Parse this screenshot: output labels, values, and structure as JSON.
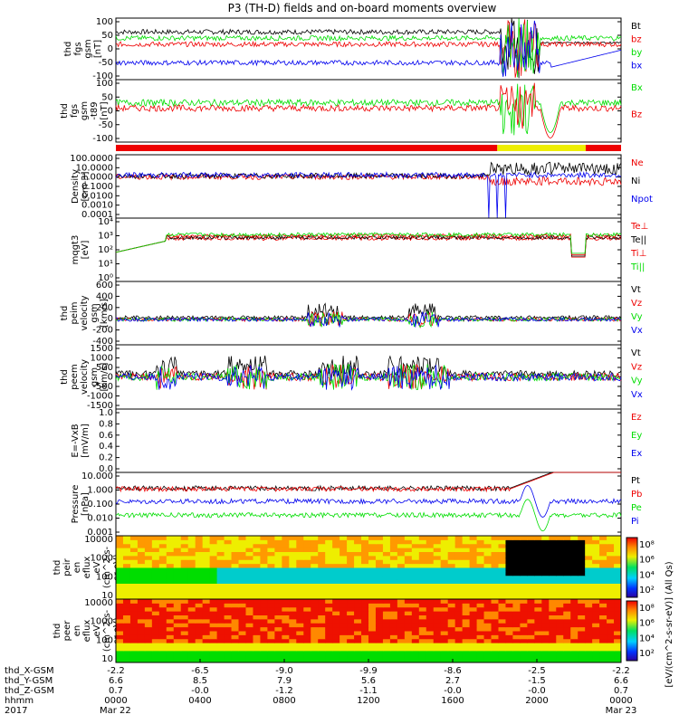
{
  "title": "P3 (TH-D) fields and on-board moments overview",
  "xaxis": {
    "ticks": [
      "0000",
      "0400",
      "0800",
      "1200",
      "1600",
      "2000",
      "0000"
    ],
    "row_labels": [
      "thd_X-GSM",
      "thd_Y-GSM",
      "thd_Z-GSM",
      "hhmm",
      "2017"
    ],
    "x_gsm": [
      "-2.2",
      "-6.5",
      "-9.0",
      "-9.9",
      "-8.6",
      "-2.5",
      "-2.2"
    ],
    "y_gsm": [
      "6.6",
      "8.5",
      "7.9",
      "5.6",
      "2.7",
      "-1.5",
      "6.6"
    ],
    "z_gsm": [
      "0.7",
      "-0.0",
      "-1.2",
      "-1.1",
      "-0.0",
      "-0.0",
      "0.7"
    ],
    "date_start": "Mar 22",
    "date_end": "Mar 23"
  },
  "colors": {
    "black": "#000000",
    "red": "#ee0000",
    "green": "#00dd00",
    "blue": "#0000ee",
    "yellow": "#eeee00"
  },
  "status_bar": {
    "segments": [
      [
        "red",
        0.0,
        0.755
      ],
      [
        "yellow",
        0.755,
        0.93
      ],
      [
        "red",
        0.93,
        1.0
      ]
    ]
  },
  "chart_data": [
    {
      "id": "fgs_gsm",
      "type": "line",
      "ylabel": [
        "thd",
        "fgs",
        "gsm",
        "[nT]"
      ],
      "ylim": [
        -100,
        100
      ],
      "yticks": [
        "100",
        "50",
        "0",
        "-50",
        "-100"
      ],
      "series": [
        {
          "name": "Bt",
          "color": "black"
        },
        {
          "name": "bz",
          "color": "red"
        },
        {
          "name": "by",
          "color": "green"
        },
        {
          "name": "bx",
          "color": "blue"
        }
      ]
    },
    {
      "id": "fgs_gsm_model",
      "type": "line",
      "ylabel": [
        "thd",
        "fgs",
        "gsm",
        "-t89",
        "[nT]"
      ],
      "ylim": [
        -130,
        100
      ],
      "yticks": [
        "100",
        "50",
        "0",
        "-50",
        "-100"
      ],
      "series": [
        {
          "name": "Bx",
          "color": "green"
        },
        {
          "name": "Bz",
          "color": "red"
        }
      ]
    },
    {
      "id": "density",
      "type": "line",
      "log": true,
      "ylabel": [
        "Density",
        "[cm-3]"
      ],
      "ylim": [
        0.0001,
        100
      ],
      "yticks": [
        "100.0000",
        "10.0000",
        "1.0000",
        "0.1000",
        "0.0100",
        "0.0010",
        "0.0001"
      ],
      "series": [
        {
          "name": "Ne",
          "color": "red"
        },
        {
          "name": "Ni",
          "color": "black"
        },
        {
          "name": "Npot",
          "color": "blue"
        }
      ]
    },
    {
      "id": "temperature",
      "type": "line",
      "log": true,
      "ylabel": [
        "mqgt3",
        "[eV]"
      ],
      "ylim": [
        1,
        100000
      ],
      "yticks": [
        "10⁴",
        "10³",
        "10²",
        "10¹",
        "10⁰"
      ],
      "series": [
        {
          "name": "Te⊥",
          "color": "red"
        },
        {
          "name": "Te||",
          "color": "black"
        },
        {
          "name": "Ti⊥",
          "color": "red"
        },
        {
          "name": "Ti||",
          "color": "green"
        }
      ]
    },
    {
      "id": "peim_velocity",
      "type": "line",
      "ylabel": [
        "thd",
        "peim",
        "velocity",
        "gsm",
        "[km/s]"
      ],
      "ylim": [
        -400,
        600
      ],
      "yticks": [
        "600",
        "400",
        "200",
        "0",
        "-200",
        "-400"
      ],
      "series": [
        {
          "name": "Vt",
          "color": "black"
        },
        {
          "name": "Vz",
          "color": "red"
        },
        {
          "name": "Vy",
          "color": "green"
        },
        {
          "name": "Vx",
          "color": "blue"
        }
      ]
    },
    {
      "id": "peem_velocity",
      "type": "line",
      "ylabel": [
        "thd",
        "peem",
        "velocity",
        "gsm",
        "[km/s]"
      ],
      "ylim": [
        -1500,
        1500
      ],
      "yticks": [
        "1500",
        "1000",
        "500",
        "0",
        "-500",
        "-1000",
        "-1500"
      ],
      "series": [
        {
          "name": "Vt",
          "color": "black"
        },
        {
          "name": "Vz",
          "color": "red"
        },
        {
          "name": "Vy",
          "color": "green"
        },
        {
          "name": "Vx",
          "color": "blue"
        }
      ]
    },
    {
      "id": "efield",
      "type": "line",
      "ylabel": [
        "E=-VxB",
        "[mV/m]"
      ],
      "ylim": [
        0,
        1
      ],
      "yticks": [
        "1.0",
        "0.8",
        "0.6",
        "0.4",
        "0.2",
        "0.0"
      ],
      "series": [
        {
          "name": "Ez",
          "color": "red"
        },
        {
          "name": "Ey",
          "color": "green"
        },
        {
          "name": "Ex",
          "color": "blue"
        }
      ]
    },
    {
      "id": "pressure",
      "type": "line",
      "log": true,
      "ylabel": [
        "Pressure",
        "[nPa]"
      ],
      "ylim": [
        0.001,
        10
      ],
      "yticks": [
        "10.000",
        "1.000",
        "0.100",
        "0.010",
        "0.001"
      ],
      "series": [
        {
          "name": "Pt",
          "color": "black"
        },
        {
          "name": "Pb",
          "color": "red"
        },
        {
          "name": "Pe",
          "color": "green"
        },
        {
          "name": "Pi",
          "color": "blue"
        }
      ]
    },
    {
      "id": "peir_spectrogram",
      "type": "heatmap",
      "ylabel": [
        "thd",
        "peir",
        "en",
        "eflux",
        "eV",
        "(cm^2-s-",
        "sr-eV)"
      ],
      "yticks": [
        "10000",
        "1000",
        "100",
        "10"
      ],
      "colorbar": {
        "label": "[eV/(cm^2-s-sr-eV)] (All Qs)",
        "ticks": [
          "10⁸",
          "10⁶",
          "10⁴",
          "10²"
        ]
      }
    },
    {
      "id": "peer_spectrogram",
      "type": "heatmap",
      "ylabel": [
        "thd",
        "peer",
        "en",
        "eflux",
        "eV",
        "(cm^2-s-",
        "sr-eV)"
      ],
      "yticks": [
        "10000",
        "1000",
        "100",
        "10"
      ],
      "colorbar": {
        "ticks": [
          "10⁸",
          "10⁶",
          "10⁴",
          "10²"
        ]
      }
    }
  ]
}
